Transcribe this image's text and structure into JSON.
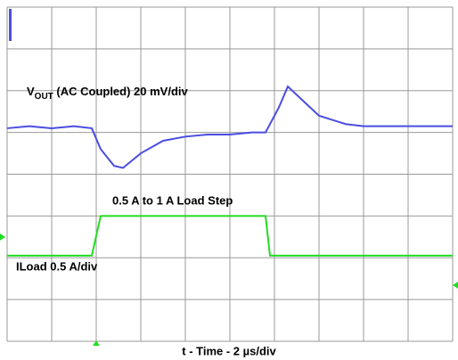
{
  "chart_data": {
    "type": "line",
    "vout_label": {
      "main": "V",
      "sub": "OUT",
      "rest": " (AC Coupled) 20 mV/div"
    },
    "step_label": "0.5 A to 1 A Load Step",
    "iload_label": "ILoad 0.5 A/div",
    "xlabel": "t - Time - 2 µs/div",
    "xlim": [
      0,
      10
    ],
    "ylim": [
      0,
      8
    ],
    "xticks": [
      0,
      1,
      2,
      3,
      4,
      5,
      6,
      7,
      8,
      9,
      10
    ],
    "yticks": [
      0,
      1,
      2,
      3,
      4,
      5,
      6,
      7,
      8
    ],
    "grid": true,
    "series": [
      {
        "color": "#4a4de0",
        "x": [
          0,
          0.5,
          1,
          1.5,
          1.9,
          2.1,
          2.4,
          2.6,
          3,
          3.5,
          4,
          4.5,
          5,
          5.5,
          5.8,
          6.1,
          6.3,
          6.6,
          7,
          7.6,
          8,
          8.5,
          9,
          9.5,
          10
        ],
        "values": [
          5.1,
          5.15,
          5.1,
          5.15,
          5.1,
          4.6,
          4.2,
          4.15,
          4.5,
          4.8,
          4.9,
          4.95,
          4.95,
          5.0,
          5.0,
          5.6,
          6.1,
          5.8,
          5.4,
          5.2,
          5.15,
          5.15,
          5.15,
          5.15,
          5.15
        ]
      },
      {
        "color": "#22dd22",
        "x": [
          0,
          1.9,
          2.1,
          5.8,
          5.9,
          10
        ],
        "values": [
          2.05,
          2.05,
          3.0,
          3.0,
          2.05,
          2.05
        ]
      }
    ]
  }
}
